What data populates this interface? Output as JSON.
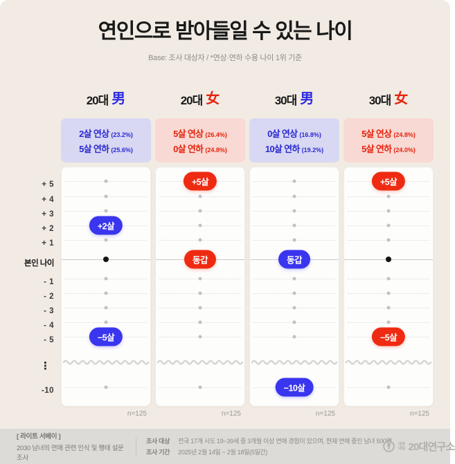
{
  "title": "연인으로 받아들일 수 있는 나이",
  "subtitle": "Base: 조사 대상자  /  *연상·연하 수용 나이 1위 기준",
  "colors": {
    "background": "#f1ebe4",
    "card": "#fdfdfc",
    "blue": "#3a35ee",
    "red": "#ee2b12",
    "blue_bg": "#d9d8f3",
    "red_bg": "#f8d9d3",
    "footer_bg": "#dcdbd8"
  },
  "chart_data": {
    "type": "dot-matrix",
    "title": "연인으로 받아들일 수 있는 나이",
    "y_axis_rows": [
      "+ 5",
      "+ 4",
      "+ 3",
      "+ 2",
      "+ 1",
      "본인 나이",
      "- 1",
      "- 2",
      "- 3",
      "- 4",
      "- 5",
      "⋮",
      "-10"
    ],
    "self_row_label": "본인 나이",
    "columns": [
      {
        "group": "20대",
        "gender": "男",
        "accent": "blue",
        "summary": [
          {
            "label": "2살 연상",
            "pct": "(23.2%)"
          },
          {
            "label": "5살 연하",
            "pct": "(25.6%)"
          }
        ],
        "older_accepted": 2,
        "younger_accepted": 5,
        "n": "n=125",
        "cells": [
          {
            "t": "dot"
          },
          {
            "t": "dot"
          },
          {
            "t": "dot"
          },
          {
            "t": "pill",
            "label": "+2살"
          },
          {
            "t": "dot"
          },
          {
            "t": "self"
          },
          {
            "t": "dot"
          },
          {
            "t": "dot"
          },
          {
            "t": "dot"
          },
          {
            "t": "dot"
          },
          {
            "t": "pill",
            "label": "−5살"
          },
          {
            "t": "wave"
          },
          {
            "t": "dot"
          }
        ]
      },
      {
        "group": "20대",
        "gender": "女",
        "accent": "red",
        "summary": [
          {
            "label": "5살 연상",
            "pct": "(26.4%)"
          },
          {
            "label": "0살 연하",
            "pct": "(24.8%)"
          }
        ],
        "older_accepted": 5,
        "younger_accepted": 0,
        "n": "n=125",
        "cells": [
          {
            "t": "pill",
            "label": "+5살"
          },
          {
            "t": "dot"
          },
          {
            "t": "dot"
          },
          {
            "t": "dot"
          },
          {
            "t": "dot"
          },
          {
            "t": "pill",
            "label": "동갑"
          },
          {
            "t": "dot"
          },
          {
            "t": "dot"
          },
          {
            "t": "dot"
          },
          {
            "t": "dot"
          },
          {
            "t": "dot"
          },
          {
            "t": "wave"
          },
          {
            "t": "dot"
          }
        ]
      },
      {
        "group": "30대",
        "gender": "男",
        "accent": "blue",
        "summary": [
          {
            "label": "0살 연상",
            "pct": "(16.8%)"
          },
          {
            "label": "10살 연하",
            "pct": "(19.2%)"
          }
        ],
        "older_accepted": 0,
        "younger_accepted": 10,
        "n": "n=125",
        "cells": [
          {
            "t": "dot"
          },
          {
            "t": "dot"
          },
          {
            "t": "dot"
          },
          {
            "t": "dot"
          },
          {
            "t": "dot"
          },
          {
            "t": "pill",
            "label": "동갑"
          },
          {
            "t": "dot"
          },
          {
            "t": "dot"
          },
          {
            "t": "dot"
          },
          {
            "t": "dot"
          },
          {
            "t": "dot"
          },
          {
            "t": "wave"
          },
          {
            "t": "pill",
            "label": "−10살"
          }
        ]
      },
      {
        "group": "30대",
        "gender": "女",
        "accent": "red",
        "summary": [
          {
            "label": "5살 연상",
            "pct": "(24.8%)"
          },
          {
            "label": "5살 연하",
            "pct": "(24.0%)"
          }
        ],
        "older_accepted": 5,
        "younger_accepted": 5,
        "n": "n=125",
        "cells": [
          {
            "t": "pill",
            "label": "+5살"
          },
          {
            "t": "dot"
          },
          {
            "t": "dot"
          },
          {
            "t": "dot"
          },
          {
            "t": "dot"
          },
          {
            "t": "self"
          },
          {
            "t": "dot"
          },
          {
            "t": "dot"
          },
          {
            "t": "dot"
          },
          {
            "t": "dot"
          },
          {
            "t": "pill",
            "label": "−5살"
          },
          {
            "t": "wave"
          },
          {
            "t": "dot"
          }
        ]
      }
    ]
  },
  "footer": {
    "survey_tag": "[ 라이트 서베이 ]",
    "survey_title": "2030 남녀의 연애 관련 인식 및 행태 설문조사",
    "rows": [
      {
        "label": "조사 대상",
        "value": "전국 17개 시도 19~39세 중 3개월 이상 연애 경험이 있으며, 현재 연애 중인 남녀 500명"
      },
      {
        "label": "조사 기간",
        "value": "2025년 2월 14일 ~ 2월 18일(5일간)"
      }
    ],
    "logo_small": "대학내일",
    "logo_text": "20대연구소"
  }
}
